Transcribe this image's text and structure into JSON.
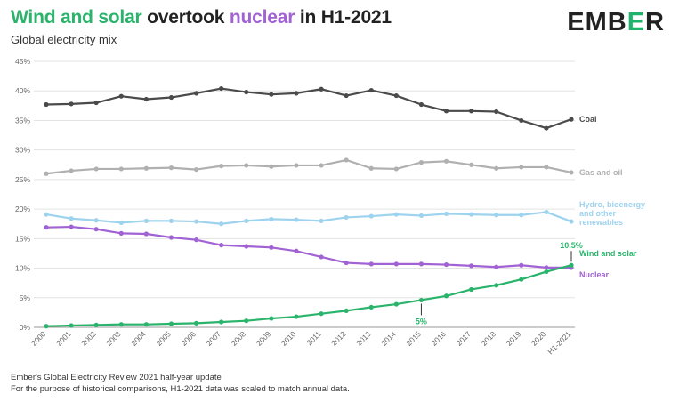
{
  "header": {
    "title_parts": [
      {
        "text": "Wind and solar",
        "color": "#2ab46b"
      },
      {
        "text": " overtook ",
        "color": "#222222"
      },
      {
        "text": "nuclear",
        "color": "#a162d4"
      },
      {
        "text": " in H1-2021",
        "color": "#222222"
      }
    ],
    "subtitle": "Global electricity mix",
    "logo": {
      "before": "EMB",
      "accent": "E",
      "after": "R",
      "accent_color": "#1db36a"
    }
  },
  "footer": {
    "line1": "Ember's Global Electricity Review 2021 half-year update",
    "line2": "For the purpose of historical comparisons, H1-2021 data was scaled to match annual data."
  },
  "chart_data": {
    "type": "line",
    "title": "",
    "xlabel": "",
    "ylabel": "",
    "x": [
      "2000",
      "2001",
      "2002",
      "2003",
      "2004",
      "2005",
      "2006",
      "2007",
      "2008",
      "2009",
      "2010",
      "2011",
      "2012",
      "2013",
      "2014",
      "2015",
      "2016",
      "2017",
      "2018",
      "2019",
      "2020",
      "H1-2021"
    ],
    "ylim": [
      0,
      45
    ],
    "yticks": [
      0,
      5,
      10,
      15,
      20,
      25,
      30,
      35,
      40,
      45
    ],
    "ytick_suffix": "%",
    "grid": true,
    "series": [
      {
        "name": "Coal",
        "label_lines": [
          "Coal"
        ],
        "color": "#4a4a4a",
        "values": [
          37.7,
          37.8,
          38.0,
          39.1,
          38.6,
          38.9,
          39.6,
          40.4,
          39.8,
          39.4,
          39.6,
          40.3,
          39.2,
          40.1,
          39.2,
          37.7,
          36.6,
          36.6,
          36.5,
          35.0,
          33.7,
          35.2
        ]
      },
      {
        "name": "Gas and oil",
        "label_lines": [
          "Gas and oil"
        ],
        "color": "#b0b0b0",
        "values": [
          26.0,
          26.5,
          26.8,
          26.8,
          26.9,
          27.0,
          26.7,
          27.3,
          27.4,
          27.2,
          27.4,
          27.4,
          28.3,
          26.9,
          26.8,
          27.9,
          28.1,
          27.5,
          26.9,
          27.1,
          27.1,
          26.2
        ]
      },
      {
        "name": "Hydro, bioenergy and other renewables",
        "label_lines": [
          "Hydro, bioenergy",
          "and other",
          "renewables"
        ],
        "color": "#9ed3ee",
        "values": [
          19.1,
          18.4,
          18.1,
          17.7,
          18.0,
          18.0,
          17.9,
          17.5,
          18.0,
          18.3,
          18.2,
          18.0,
          18.6,
          18.8,
          19.1,
          18.9,
          19.2,
          19.1,
          19.0,
          19.0,
          19.5,
          17.9
        ]
      },
      {
        "name": "Nuclear",
        "label_lines": [
          "Nuclear"
        ],
        "color": "#a162d4",
        "values": [
          16.9,
          17.0,
          16.6,
          15.9,
          15.8,
          15.2,
          14.8,
          13.9,
          13.7,
          13.5,
          12.9,
          11.9,
          10.9,
          10.7,
          10.7,
          10.7,
          10.6,
          10.4,
          10.2,
          10.5,
          10.1,
          10.1
        ]
      },
      {
        "name": "Wind and solar",
        "label_lines": [
          "Wind and solar"
        ],
        "color": "#2ab46b",
        "values": [
          0.2,
          0.3,
          0.4,
          0.5,
          0.5,
          0.6,
          0.7,
          0.9,
          1.1,
          1.5,
          1.8,
          2.3,
          2.8,
          3.4,
          3.9,
          4.6,
          5.3,
          6.4,
          7.1,
          8.1,
          9.4,
          10.5
        ]
      }
    ],
    "annotations": [
      {
        "text": "5%",
        "x": "2015",
        "y": 4.6,
        "color": "#2ab46b"
      },
      {
        "text": "10.5%",
        "x": "H1-2021",
        "y": 10.5,
        "color": "#2ab46b"
      }
    ]
  }
}
